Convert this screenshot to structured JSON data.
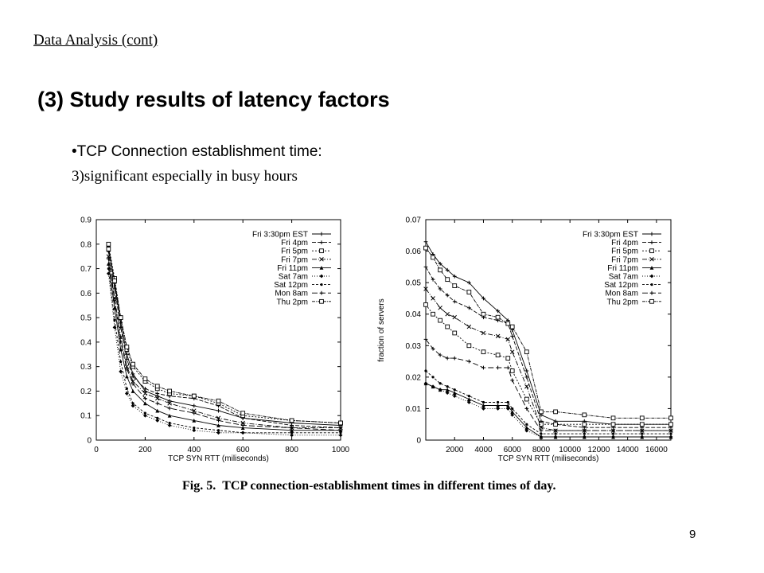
{
  "slide": {
    "header": "Data Analysis (cont)",
    "title": "(3) Study results of latency factors",
    "bullet": "•TCP Connection establishment time:",
    "subtext": "3)significant especially in busy hours",
    "page_number": "9",
    "caption_label": "Fig. 5.",
    "caption_text": "TCP connection-establishment times in different times of day."
  },
  "chart_data": [
    {
      "type": "line",
      "xlabel": "TCP SYN RTT (miliseconds)",
      "ylabel": "",
      "xlim": [
        0,
        1000
      ],
      "ylim": [
        0,
        0.9
      ],
      "xticks": [
        0,
        200,
        400,
        600,
        800,
        1000
      ],
      "yticks": [
        0,
        0.1,
        0.2,
        0.3,
        0.4,
        0.5,
        0.6,
        0.7,
        0.8,
        0.9
      ],
      "ytick_labels": [
        "0",
        "0.1",
        "0.2",
        "0.3",
        "0.4",
        "0.5",
        "0.6",
        "0.7",
        "0.8",
        "0.9"
      ],
      "grid": false,
      "legend": "top-right",
      "series": [
        {
          "name": "Fri 3:30pm EST",
          "x": [
            50,
            75,
            100,
            125,
            150,
            200,
            250,
            300,
            400,
            500,
            600,
            800,
            1000
          ],
          "values": [
            0.79,
            0.64,
            0.48,
            0.35,
            0.27,
            0.2,
            0.18,
            0.16,
            0.14,
            0.12,
            0.09,
            0.07,
            0.06
          ]
        },
        {
          "name": "Fri 4pm",
          "x": [
            50,
            75,
            100,
            125,
            150,
            200,
            250,
            300,
            400,
            500,
            600,
            800,
            1000
          ],
          "values": [
            0.77,
            0.62,
            0.46,
            0.33,
            0.26,
            0.21,
            0.19,
            0.18,
            0.17,
            0.14,
            0.09,
            0.06,
            0.05
          ]
        },
        {
          "name": "Fri 5pm",
          "x": [
            50,
            75,
            100,
            125,
            150,
            200,
            250,
            300,
            400,
            500,
            600,
            800,
            1000
          ],
          "values": [
            0.8,
            0.66,
            0.5,
            0.37,
            0.3,
            0.24,
            0.21,
            0.19,
            0.18,
            0.15,
            0.1,
            0.08,
            0.07
          ]
        },
        {
          "name": "Fri 7pm",
          "x": [
            50,
            75,
            100,
            125,
            150,
            200,
            250,
            300,
            400,
            500,
            600,
            800,
            1000
          ],
          "values": [
            0.75,
            0.58,
            0.42,
            0.3,
            0.24,
            0.19,
            0.17,
            0.15,
            0.12,
            0.09,
            0.07,
            0.05,
            0.05
          ]
        },
        {
          "name": "Fri 11pm",
          "x": [
            50,
            75,
            100,
            125,
            150,
            200,
            250,
            300,
            400,
            500,
            600,
            800,
            1000
          ],
          "values": [
            0.72,
            0.54,
            0.37,
            0.26,
            0.2,
            0.15,
            0.12,
            0.1,
            0.08,
            0.06,
            0.05,
            0.04,
            0.04
          ]
        },
        {
          "name": "Sat 7am",
          "x": [
            50,
            75,
            100,
            125,
            150,
            200,
            250,
            300,
            400,
            500,
            600,
            800,
            1000
          ],
          "values": [
            0.68,
            0.46,
            0.28,
            0.19,
            0.14,
            0.1,
            0.08,
            0.06,
            0.04,
            0.03,
            0.03,
            0.02,
            0.02
          ]
        },
        {
          "name": "Sat 12pm",
          "x": [
            50,
            75,
            100,
            125,
            150,
            200,
            250,
            300,
            400,
            500,
            600,
            800,
            1000
          ],
          "values": [
            0.7,
            0.49,
            0.32,
            0.21,
            0.15,
            0.11,
            0.09,
            0.07,
            0.05,
            0.04,
            0.03,
            0.03,
            0.03
          ]
        },
        {
          "name": "Mon 8am",
          "x": [
            50,
            75,
            100,
            125,
            150,
            200,
            250,
            300,
            400,
            500,
            600,
            800,
            1000
          ],
          "values": [
            0.74,
            0.57,
            0.4,
            0.29,
            0.23,
            0.17,
            0.15,
            0.13,
            0.11,
            0.08,
            0.06,
            0.05,
            0.04
          ]
        },
        {
          "name": "Thu 2pm",
          "x": [
            50,
            75,
            100,
            125,
            150,
            200,
            250,
            300,
            400,
            500,
            600,
            800,
            1000
          ],
          "values": [
            0.78,
            0.65,
            0.5,
            0.38,
            0.31,
            0.25,
            0.22,
            0.2,
            0.18,
            0.16,
            0.11,
            0.08,
            0.07
          ]
        }
      ]
    },
    {
      "type": "line",
      "xlabel": "TCP SYN RTT (miliseconds)",
      "ylabel": "fraction of servers",
      "xlim": [
        0,
        17000
      ],
      "ylim": [
        0,
        0.07
      ],
      "xticks": [
        2000,
        4000,
        6000,
        8000,
        10000,
        12000,
        14000,
        16000
      ],
      "yticks": [
        0,
        0.01,
        0.02,
        0.03,
        0.04,
        0.05,
        0.06,
        0.07
      ],
      "ytick_labels": [
        "0",
        "0.01",
        "0.02",
        "0.03",
        "0.04",
        "0.05",
        "0.06",
        "0.07"
      ],
      "grid": false,
      "legend": "top-right",
      "series": [
        {
          "name": "Fri 3:30pm EST",
          "x": [
            0,
            500,
            1000,
            1500,
            2000,
            3000,
            4000,
            5000,
            5700,
            6000,
            7000,
            8000,
            9000,
            11000,
            13000,
            15000,
            17000
          ],
          "values": [
            0.063,
            0.059,
            0.056,
            0.054,
            0.052,
            0.05,
            0.045,
            0.041,
            0.038,
            0.035,
            0.022,
            0.008,
            0.006,
            0.006,
            0.005,
            0.005,
            0.005
          ]
        },
        {
          "name": "Fri 4pm",
          "x": [
            0,
            500,
            1000,
            1500,
            2000,
            3000,
            4000,
            5000,
            5700,
            6000,
            7000,
            8000,
            9000,
            11000,
            13000,
            15000,
            17000
          ],
          "values": [
            0.055,
            0.051,
            0.048,
            0.046,
            0.044,
            0.042,
            0.039,
            0.038,
            0.037,
            0.033,
            0.02,
            0.006,
            0.005,
            0.004,
            0.004,
            0.004,
            0.004
          ]
        },
        {
          "name": "Fri 5pm",
          "x": [
            0,
            500,
            1000,
            1500,
            2000,
            3000,
            4000,
            5000,
            5700,
            6000,
            7000,
            8000,
            9000,
            11000,
            13000,
            15000,
            17000
          ],
          "values": [
            0.043,
            0.04,
            0.038,
            0.036,
            0.034,
            0.03,
            0.028,
            0.027,
            0.026,
            0.022,
            0.013,
            0.005,
            0.005,
            0.005,
            0.005,
            0.005,
            0.005
          ]
        },
        {
          "name": "Fri 7pm",
          "x": [
            0,
            500,
            1000,
            1500,
            2000,
            3000,
            4000,
            5000,
            5700,
            6000,
            7000,
            8000,
            9000,
            11000,
            13000,
            15000,
            17000
          ],
          "values": [
            0.048,
            0.045,
            0.042,
            0.04,
            0.039,
            0.036,
            0.034,
            0.033,
            0.032,
            0.028,
            0.017,
            0.004,
            0.003,
            0.003,
            0.003,
            0.003,
            0.003
          ]
        },
        {
          "name": "Fri 11pm",
          "x": [
            0,
            500,
            1000,
            1500,
            2000,
            3000,
            4000,
            5000,
            5700,
            6000,
            7000,
            8000,
            9000,
            11000,
            13000,
            15000,
            17000
          ],
          "values": [
            0.018,
            0.017,
            0.016,
            0.016,
            0.015,
            0.013,
            0.011,
            0.011,
            0.011,
            0.009,
            0.004,
            0.001,
            0.001,
            0.001,
            0.001,
            0.001,
            0.001
          ]
        },
        {
          "name": "Sat 7am",
          "x": [
            0,
            500,
            1000,
            1500,
            2000,
            3000,
            4000,
            5000,
            5700,
            6000,
            7000,
            8000,
            9000,
            11000,
            13000,
            15000,
            17000
          ],
          "values": [
            0.018,
            0.017,
            0.016,
            0.015,
            0.014,
            0.012,
            0.01,
            0.01,
            0.01,
            0.008,
            0.003,
            0.001,
            0.001,
            0.001,
            0.001,
            0.001,
            0.001
          ]
        },
        {
          "name": "Sat 12pm",
          "x": [
            0,
            500,
            1000,
            1500,
            2000,
            3000,
            4000,
            5000,
            5700,
            6000,
            7000,
            8000,
            9000,
            11000,
            13000,
            15000,
            17000
          ],
          "values": [
            0.022,
            0.02,
            0.018,
            0.017,
            0.016,
            0.014,
            0.012,
            0.012,
            0.012,
            0.01,
            0.005,
            0.002,
            0.002,
            0.002,
            0.002,
            0.002,
            0.002
          ]
        },
        {
          "name": "Mon 8am",
          "x": [
            0,
            500,
            1000,
            1500,
            2000,
            3000,
            4000,
            5000,
            5700,
            6000,
            7000,
            8000,
            9000,
            11000,
            13000,
            15000,
            17000
          ],
          "values": [
            0.032,
            0.029,
            0.027,
            0.026,
            0.026,
            0.025,
            0.023,
            0.023,
            0.023,
            0.019,
            0.01,
            0.003,
            0.003,
            0.003,
            0.003,
            0.003,
            0.003
          ]
        },
        {
          "name": "Thu 2pm",
          "x": [
            0,
            500,
            1000,
            1500,
            2000,
            3000,
            4000,
            5000,
            5700,
            6000,
            7000,
            8000,
            9000,
            11000,
            13000,
            15000,
            17000
          ],
          "values": [
            0.061,
            0.058,
            0.054,
            0.051,
            0.049,
            0.047,
            0.04,
            0.039,
            0.037,
            0.036,
            0.028,
            0.009,
            0.009,
            0.008,
            0.007,
            0.007,
            0.007
          ]
        }
      ]
    }
  ],
  "marker_colors": {
    "line": "#000000"
  }
}
